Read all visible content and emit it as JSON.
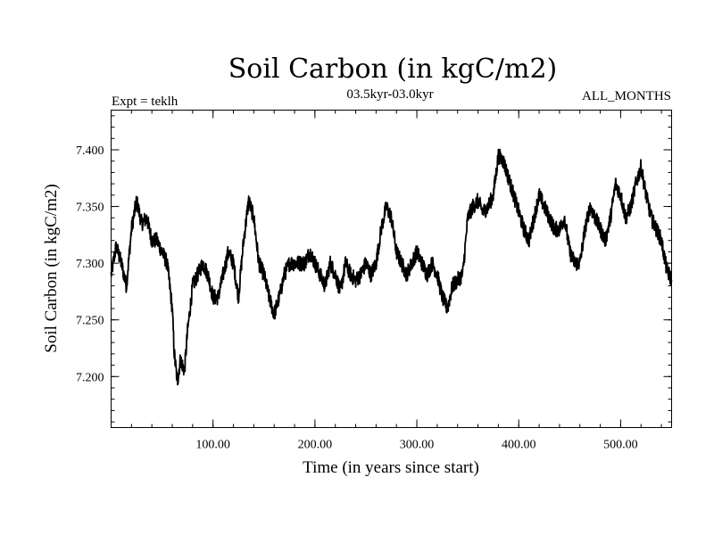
{
  "chart_data": {
    "type": "line",
    "title": "Soil Carbon (in kgC/m2)",
    "subtitle": "03.5kyr-03.0kyr",
    "experiment_label": "Expt = teklh",
    "months_label": "ALL_MONTHS",
    "xlabel": "Time (in years since start)",
    "ylabel": "Soil Carbon (in kgC/m2)",
    "xlim": [
      0,
      550
    ],
    "ylim": [
      7.155,
      7.435
    ],
    "x_ticks": [
      {
        "value": 100,
        "label": "100.00"
      },
      {
        "value": 200,
        "label": "200.00"
      },
      {
        "value": 300,
        "label": "300.00"
      },
      {
        "value": 400,
        "label": "400.00"
      },
      {
        "value": 500,
        "label": "500.00"
      }
    ],
    "y_ticks": [
      {
        "value": 7.2,
        "label": "7.200"
      },
      {
        "value": 7.25,
        "label": "7.250"
      },
      {
        "value": 7.3,
        "label": "7.300"
      },
      {
        "value": 7.35,
        "label": "7.350"
      },
      {
        "value": 7.4,
        "label": "7.400"
      }
    ],
    "x_minor_step": 20,
    "y_minor_step": 0.01,
    "grid": false,
    "legend": "none",
    "series": [
      {
        "name": "Soil Carbon",
        "color": "#000000",
        "noise": 0.007,
        "points": [
          [
            0,
            7.29
          ],
          [
            5,
            7.315
          ],
          [
            10,
            7.3
          ],
          [
            15,
            7.28
          ],
          [
            20,
            7.33
          ],
          [
            25,
            7.355
          ],
          [
            30,
            7.335
          ],
          [
            35,
            7.34
          ],
          [
            40,
            7.32
          ],
          [
            45,
            7.32
          ],
          [
            50,
            7.31
          ],
          [
            55,
            7.3
          ],
          [
            60,
            7.26
          ],
          [
            62,
            7.22
          ],
          [
            65,
            7.195
          ],
          [
            68,
            7.215
          ],
          [
            72,
            7.205
          ],
          [
            75,
            7.24
          ],
          [
            80,
            7.28
          ],
          [
            85,
            7.29
          ],
          [
            90,
            7.3
          ],
          [
            95,
            7.29
          ],
          [
            100,
            7.27
          ],
          [
            105,
            7.27
          ],
          [
            110,
            7.29
          ],
          [
            115,
            7.31
          ],
          [
            120,
            7.3
          ],
          [
            125,
            7.27
          ],
          [
            130,
            7.32
          ],
          [
            135,
            7.355
          ],
          [
            140,
            7.34
          ],
          [
            145,
            7.3
          ],
          [
            150,
            7.29
          ],
          [
            155,
            7.27
          ],
          [
            160,
            7.255
          ],
          [
            165,
            7.27
          ],
          [
            170,
            7.29
          ],
          [
            175,
            7.3
          ],
          [
            180,
            7.3
          ],
          [
            185,
            7.3
          ],
          [
            190,
            7.3
          ],
          [
            195,
            7.31
          ],
          [
            200,
            7.3
          ],
          [
            205,
            7.29
          ],
          [
            210,
            7.28
          ],
          [
            215,
            7.3
          ],
          [
            220,
            7.29
          ],
          [
            225,
            7.275
          ],
          [
            230,
            7.3
          ],
          [
            235,
            7.29
          ],
          [
            240,
            7.285
          ],
          [
            245,
            7.29
          ],
          [
            250,
            7.3
          ],
          [
            255,
            7.29
          ],
          [
            260,
            7.3
          ],
          [
            265,
            7.33
          ],
          [
            270,
            7.35
          ],
          [
            275,
            7.34
          ],
          [
            280,
            7.31
          ],
          [
            285,
            7.3
          ],
          [
            290,
            7.29
          ],
          [
            295,
            7.3
          ],
          [
            300,
            7.31
          ],
          [
            305,
            7.3
          ],
          [
            310,
            7.29
          ],
          [
            315,
            7.3
          ],
          [
            320,
            7.29
          ],
          [
            325,
            7.27
          ],
          [
            330,
            7.26
          ],
          [
            335,
            7.28
          ],
          [
            340,
            7.285
          ],
          [
            345,
            7.29
          ],
          [
            350,
            7.34
          ],
          [
            355,
            7.35
          ],
          [
            360,
            7.355
          ],
          [
            365,
            7.345
          ],
          [
            370,
            7.35
          ],
          [
            375,
            7.36
          ],
          [
            380,
            7.395
          ],
          [
            385,
            7.39
          ],
          [
            390,
            7.375
          ],
          [
            395,
            7.36
          ],
          [
            400,
            7.345
          ],
          [
            405,
            7.33
          ],
          [
            410,
            7.32
          ],
          [
            415,
            7.34
          ],
          [
            420,
            7.36
          ],
          [
            425,
            7.35
          ],
          [
            430,
            7.34
          ],
          [
            435,
            7.33
          ],
          [
            440,
            7.33
          ],
          [
            445,
            7.34
          ],
          [
            450,
            7.31
          ],
          [
            455,
            7.3
          ],
          [
            460,
            7.3
          ],
          [
            465,
            7.33
          ],
          [
            470,
            7.35
          ],
          [
            475,
            7.34
          ],
          [
            480,
            7.33
          ],
          [
            485,
            7.32
          ],
          [
            490,
            7.34
          ],
          [
            495,
            7.37
          ],
          [
            500,
            7.36
          ],
          [
            505,
            7.34
          ],
          [
            510,
            7.35
          ],
          [
            515,
            7.37
          ],
          [
            520,
            7.385
          ],
          [
            525,
            7.36
          ],
          [
            530,
            7.34
          ],
          [
            535,
            7.33
          ],
          [
            540,
            7.32
          ],
          [
            545,
            7.295
          ],
          [
            550,
            7.285
          ]
        ]
      }
    ]
  }
}
